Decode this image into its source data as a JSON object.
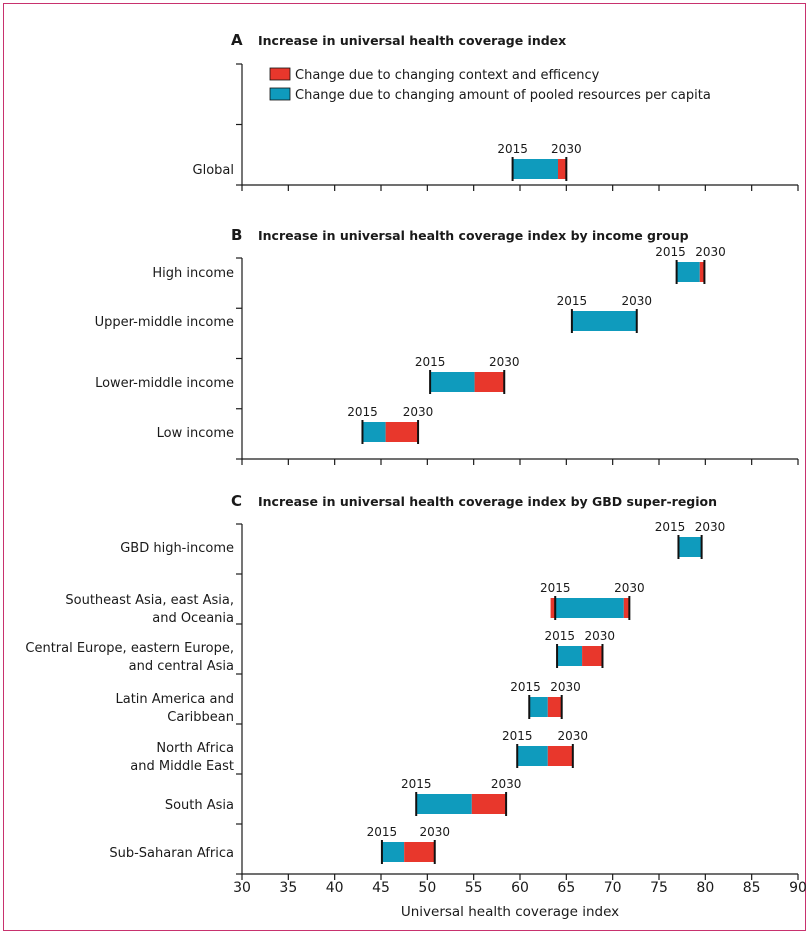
{
  "chart_data": [
    {
      "type": "bar",
      "panel": "A",
      "title": "Increase in universal health coverage index",
      "legend": [
        {
          "name": "Change due to changing context and efficency",
          "color": "#e8372c"
        },
        {
          "name": "Change due to changing amount of pooled resources per capita",
          "color": "#0f9bbd"
        }
      ],
      "start_label": "2015",
      "end_label": "2030",
      "rows": [
        {
          "label": [
            "Global"
          ],
          "start": 59.2,
          "end": 65.0,
          "pooled": 4.9,
          "context": 0.9
        }
      ]
    },
    {
      "type": "bar",
      "panel": "B",
      "title": "Increase in universal health coverage index by income group",
      "start_label": "2015",
      "end_label": "2030",
      "rows": [
        {
          "label": [
            "High income"
          ],
          "start": 76.9,
          "end": 79.9,
          "pooled": 2.5,
          "context": 0.5
        },
        {
          "label": [
            "Upper-middle income"
          ],
          "start": 65.6,
          "end": 72.6,
          "pooled": 7.0,
          "context": 0.0
        },
        {
          "label": [
            "Lower-middle income"
          ],
          "start": 50.3,
          "end": 58.3,
          "pooled": 4.8,
          "context": 3.2
        },
        {
          "label": [
            "Low income"
          ],
          "start": 43.0,
          "end": 49.0,
          "pooled": 2.5,
          "context": 3.5
        }
      ]
    },
    {
      "type": "bar",
      "panel": "C",
      "title": "Increase in universal health coverage index by GBD super-region",
      "start_label": "2015",
      "end_label": "2030",
      "xlabel": "Universal health coverage index",
      "xlim": [
        30,
        90
      ],
      "xticks": [
        30,
        35,
        40,
        45,
        50,
        55,
        60,
        65,
        70,
        75,
        80,
        85,
        90
      ],
      "rows": [
        {
          "label": [
            "GBD high-income"
          ],
          "start": 77.1,
          "end": 79.6,
          "pooled": 2.5,
          "context": 0.0
        },
        {
          "label": [
            "Southeast Asia, east Asia,",
            "and Oceania"
          ],
          "start": 63.8,
          "end": 71.8,
          "pooled": 7.4,
          "context": 0.6,
          "context_before": 0.5
        },
        {
          "label": [
            "Central Europe, eastern Europe,",
            "and central Asia"
          ],
          "start": 64.0,
          "end": 68.9,
          "pooled": 2.7,
          "context": 2.2
        },
        {
          "label": [
            "Latin America and",
            "Caribbean"
          ],
          "start": 61.0,
          "end": 64.5,
          "pooled": 2.0,
          "context": 1.5
        },
        {
          "label": [
            "North Africa",
            "and Middle East"
          ],
          "start": 59.7,
          "end": 65.7,
          "pooled": 3.3,
          "context": 2.7
        },
        {
          "label": [
            "South Asia"
          ],
          "start": 48.8,
          "end": 58.5,
          "pooled": 6.0,
          "context": 3.7
        },
        {
          "label": [
            "Sub-Saharan Africa"
          ],
          "start": 45.1,
          "end": 50.8,
          "pooled": 2.4,
          "context": 3.3
        }
      ]
    }
  ]
}
